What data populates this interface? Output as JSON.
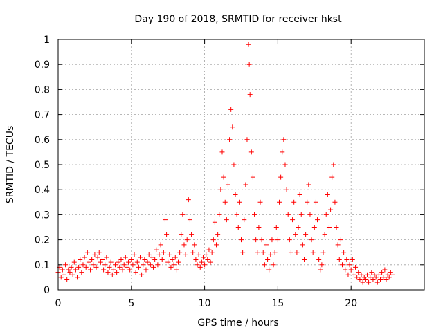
{
  "chart_data": {
    "type": "scatter",
    "title": "Day 190 of 2018, SRMTID for receiver hkst",
    "xlabel": "GPS time / hours",
    "ylabel": "SRMTID / TECUs",
    "xlim": [
      0,
      25
    ],
    "ylim": [
      0,
      1
    ],
    "grid": true,
    "marker": "+",
    "color": "#ff0000",
    "x_ticks": [
      0,
      5,
      10,
      15,
      20
    ],
    "y_ticks": [
      0,
      0.1,
      0.2,
      0.3,
      0.4,
      0.5,
      0.6,
      0.7,
      0.8,
      0.9,
      1
    ],
    "x_tick_labels": [
      "0",
      "5",
      "10",
      "15",
      "20"
    ],
    "y_tick_labels": [
      "0",
      "0.1",
      "0.2",
      "0.3",
      "0.4",
      "0.5",
      "0.6",
      "0.7",
      "0.8",
      "0.9",
      "1"
    ],
    "series": [
      {
        "name": "SRMTID",
        "points": [
          [
            0.0,
            0.07
          ],
          [
            0.1,
            0.09
          ],
          [
            0.2,
            0.05
          ],
          [
            0.3,
            0.08
          ],
          [
            0.4,
            0.06
          ],
          [
            0.5,
            0.1
          ],
          [
            0.6,
            0.04
          ],
          [
            0.7,
            0.08
          ],
          [
            0.8,
            0.07
          ],
          [
            0.9,
            0.09
          ],
          [
            1.0,
            0.06
          ],
          [
            1.1,
            0.11
          ],
          [
            1.2,
            0.08
          ],
          [
            1.3,
            0.05
          ],
          [
            1.4,
            0.09
          ],
          [
            1.5,
            0.12
          ],
          [
            1.6,
            0.07
          ],
          [
            1.7,
            0.1
          ],
          [
            1.8,
            0.13
          ],
          [
            1.9,
            0.09
          ],
          [
            2.0,
            0.15
          ],
          [
            2.1,
            0.11
          ],
          [
            2.2,
            0.08
          ],
          [
            2.3,
            0.12
          ],
          [
            2.4,
            0.1
          ],
          [
            2.5,
            0.14
          ],
          [
            2.6,
            0.09
          ],
          [
            2.7,
            0.13
          ],
          [
            2.8,
            0.15
          ],
          [
            2.9,
            0.11
          ],
          [
            3.0,
            0.12
          ],
          [
            3.1,
            0.08
          ],
          [
            3.2,
            0.1
          ],
          [
            3.3,
            0.13
          ],
          [
            3.4,
            0.07
          ],
          [
            3.5,
            0.09
          ],
          [
            3.6,
            0.11
          ],
          [
            3.7,
            0.06
          ],
          [
            3.8,
            0.08
          ],
          [
            3.9,
            0.1
          ],
          [
            4.0,
            0.07
          ],
          [
            4.1,
            0.11
          ],
          [
            4.2,
            0.09
          ],
          [
            4.3,
            0.12
          ],
          [
            4.4,
            0.08
          ],
          [
            4.5,
            0.1
          ],
          [
            4.6,
            0.13
          ],
          [
            4.7,
            0.09
          ],
          [
            4.8,
            0.11
          ],
          [
            4.9,
            0.08
          ],
          [
            5.0,
            0.12
          ],
          [
            5.1,
            0.1
          ],
          [
            5.2,
            0.14
          ],
          [
            5.3,
            0.07
          ],
          [
            5.4,
            0.11
          ],
          [
            5.5,
            0.09
          ],
          [
            5.6,
            0.13
          ],
          [
            5.7,
            0.06
          ],
          [
            5.8,
            0.1
          ],
          [
            5.9,
            0.12
          ],
          [
            6.0,
            0.08
          ],
          [
            6.1,
            0.11
          ],
          [
            6.2,
            0.14
          ],
          [
            6.3,
            0.1
          ],
          [
            6.4,
            0.13
          ],
          [
            6.5,
            0.09
          ],
          [
            6.6,
            0.12
          ],
          [
            6.7,
            0.16
          ],
          [
            6.8,
            0.1
          ],
          [
            6.9,
            0.14
          ],
          [
            7.0,
            0.18
          ],
          [
            7.1,
            0.12
          ],
          [
            7.2,
            0.15
          ],
          [
            7.3,
            0.28
          ],
          [
            7.4,
            0.22
          ],
          [
            7.5,
            0.11
          ],
          [
            7.6,
            0.14
          ],
          [
            7.7,
            0.09
          ],
          [
            7.8,
            0.12
          ],
          [
            7.9,
            0.1
          ],
          [
            8.0,
            0.13
          ],
          [
            8.1,
            0.08
          ],
          [
            8.2,
            0.11
          ],
          [
            8.3,
            0.15
          ],
          [
            8.4,
            0.22
          ],
          [
            8.5,
            0.3
          ],
          [
            8.6,
            0.18
          ],
          [
            8.7,
            0.14
          ],
          [
            8.8,
            0.2
          ],
          [
            8.9,
            0.36
          ],
          [
            9.0,
            0.28
          ],
          [
            9.1,
            0.22
          ],
          [
            9.2,
            0.15
          ],
          [
            9.3,
            0.18
          ],
          [
            9.4,
            0.12
          ],
          [
            9.5,
            0.1
          ],
          [
            9.6,
            0.14
          ],
          [
            9.7,
            0.09
          ],
          [
            9.8,
            0.11
          ],
          [
            9.9,
            0.13
          ],
          [
            10.0,
            0.1
          ],
          [
            10.1,
            0.14
          ],
          [
            10.2,
            0.12
          ],
          [
            10.3,
            0.16
          ],
          [
            10.4,
            0.11
          ],
          [
            10.5,
            0.15
          ],
          [
            10.6,
            0.2
          ],
          [
            10.7,
            0.27
          ],
          [
            10.8,
            0.18
          ],
          [
            10.9,
            0.22
          ],
          [
            11.0,
            0.3
          ],
          [
            11.1,
            0.4
          ],
          [
            11.2,
            0.55
          ],
          [
            11.3,
            0.45
          ],
          [
            11.4,
            0.35
          ],
          [
            11.5,
            0.28
          ],
          [
            11.6,
            0.42
          ],
          [
            11.7,
            0.6
          ],
          [
            11.8,
            0.72
          ],
          [
            11.9,
            0.65
          ],
          [
            12.0,
            0.5
          ],
          [
            12.1,
            0.38
          ],
          [
            12.2,
            0.3
          ],
          [
            12.3,
            0.25
          ],
          [
            12.4,
            0.35
          ],
          [
            12.5,
            0.2
          ],
          [
            12.6,
            0.15
          ],
          [
            12.7,
            0.28
          ],
          [
            12.8,
            0.42
          ],
          [
            12.9,
            0.6
          ],
          [
            13.0,
            0.98
          ],
          [
            13.05,
            0.9
          ],
          [
            13.1,
            0.78
          ],
          [
            13.2,
            0.55
          ],
          [
            13.3,
            0.45
          ],
          [
            13.4,
            0.3
          ],
          [
            13.5,
            0.2
          ],
          [
            13.6,
            0.15
          ],
          [
            13.7,
            0.25
          ],
          [
            13.8,
            0.35
          ],
          [
            13.9,
            0.2
          ],
          [
            14.0,
            0.15
          ],
          [
            14.1,
            0.1
          ],
          [
            14.2,
            0.18
          ],
          [
            14.3,
            0.12
          ],
          [
            14.4,
            0.08
          ],
          [
            14.5,
            0.14
          ],
          [
            14.6,
            0.2
          ],
          [
            14.7,
            0.1
          ],
          [
            14.8,
            0.15
          ],
          [
            14.9,
            0.25
          ],
          [
            15.0,
            0.2
          ],
          [
            15.1,
            0.35
          ],
          [
            15.2,
            0.45
          ],
          [
            15.3,
            0.55
          ],
          [
            15.4,
            0.6
          ],
          [
            15.5,
            0.5
          ],
          [
            15.6,
            0.4
          ],
          [
            15.7,
            0.3
          ],
          [
            15.8,
            0.2
          ],
          [
            15.9,
            0.15
          ],
          [
            16.0,
            0.28
          ],
          [
            16.1,
            0.35
          ],
          [
            16.2,
            0.22
          ],
          [
            16.3,
            0.15
          ],
          [
            16.4,
            0.25
          ],
          [
            16.5,
            0.38
          ],
          [
            16.6,
            0.3
          ],
          [
            16.7,
            0.18
          ],
          [
            16.8,
            0.12
          ],
          [
            16.9,
            0.22
          ],
          [
            17.0,
            0.35
          ],
          [
            17.1,
            0.42
          ],
          [
            17.2,
            0.3
          ],
          [
            17.3,
            0.2
          ],
          [
            17.4,
            0.15
          ],
          [
            17.5,
            0.25
          ],
          [
            17.6,
            0.35
          ],
          [
            17.7,
            0.28
          ],
          [
            17.8,
            0.12
          ],
          [
            17.9,
            0.08
          ],
          [
            18.0,
            0.1
          ],
          [
            18.1,
            0.15
          ],
          [
            18.2,
            0.22
          ],
          [
            18.3,
            0.3
          ],
          [
            18.4,
            0.38
          ],
          [
            18.5,
            0.25
          ],
          [
            18.6,
            0.32
          ],
          [
            18.7,
            0.45
          ],
          [
            18.8,
            0.5
          ],
          [
            18.9,
            0.35
          ],
          [
            19.0,
            0.25
          ],
          [
            19.1,
            0.18
          ],
          [
            19.2,
            0.12
          ],
          [
            19.3,
            0.2
          ],
          [
            19.4,
            0.1
          ],
          [
            19.5,
            0.15
          ],
          [
            19.6,
            0.08
          ],
          [
            19.7,
            0.12
          ],
          [
            19.8,
            0.06
          ],
          [
            19.9,
            0.1
          ],
          [
            20.0,
            0.08
          ],
          [
            20.1,
            0.12
          ],
          [
            20.2,
            0.06
          ],
          [
            20.3,
            0.09
          ],
          [
            20.4,
            0.05
          ],
          [
            20.5,
            0.07
          ],
          [
            20.6,
            0.04
          ],
          [
            20.7,
            0.06
          ],
          [
            20.8,
            0.03
          ],
          [
            20.9,
            0.05
          ],
          [
            21.0,
            0.04
          ],
          [
            21.1,
            0.06
          ],
          [
            21.2,
            0.03
          ],
          [
            21.3,
            0.05
          ],
          [
            21.4,
            0.07
          ],
          [
            21.5,
            0.04
          ],
          [
            21.6,
            0.06
          ],
          [
            21.7,
            0.05
          ],
          [
            21.8,
            0.03
          ],
          [
            21.9,
            0.06
          ],
          [
            22.0,
            0.04
          ],
          [
            22.1,
            0.07
          ],
          [
            22.2,
            0.05
          ],
          [
            22.3,
            0.08
          ],
          [
            22.4,
            0.04
          ],
          [
            22.5,
            0.06
          ],
          [
            22.6,
            0.05
          ],
          [
            22.7,
            0.07
          ],
          [
            22.8,
            0.06
          ]
        ]
      }
    ]
  }
}
